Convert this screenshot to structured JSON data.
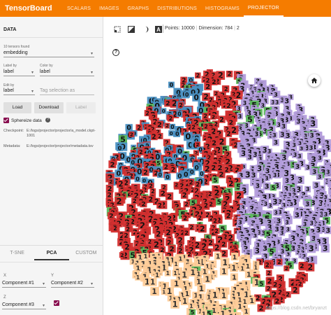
{
  "app": {
    "brand": "TensorBoard",
    "tabs": [
      {
        "label": "SCALARS",
        "active": false
      },
      {
        "label": "IMAGES",
        "active": false
      },
      {
        "label": "GRAPHS",
        "active": false
      },
      {
        "label": "DISTRIBUTIONS",
        "active": false
      },
      {
        "label": "HISTOGRAMS",
        "active": false
      },
      {
        "label": "PROJECTOR",
        "active": true
      }
    ],
    "accent": "#f57c00"
  },
  "sidebar": {
    "header": "DATA",
    "tensors_found": "10 tensors found",
    "tensor_select": "embedding",
    "label_by_caption": "Label by",
    "label_by": "label",
    "color_by_caption": "Color by",
    "color_by": "label",
    "edit_by_caption": "Edit by",
    "edit_by": "label",
    "tag_placeholder": "Tag selection as",
    "load_label": "Load",
    "download_label": "Download",
    "label_button": "Label",
    "sphereize_label": "Sphereize data",
    "sphereize_checked": true,
    "checkpoint_key": "Checkpoint:",
    "checkpoint_value": "E:/logs/projector/projector/a_model.ckpt-1001",
    "metadata_key": "Metadata:",
    "metadata_value": "E:/logs/projector/projector/metadata.tsv",
    "projection_tabs": [
      {
        "label": "T-SNE",
        "active": false
      },
      {
        "label": "PCA",
        "active": true
      },
      {
        "label": "CUSTOM",
        "active": false
      }
    ],
    "x_caption": "X",
    "x_component": "Component #1",
    "y_caption": "Y",
    "y_component": "Component #2",
    "z_caption": "Z",
    "z_component": "Component #3",
    "z_enabled": true
  },
  "toolbar": {
    "icons": [
      "select-rectangle-icon",
      "night-mode-icon",
      "brightness-icon",
      "label-mode-icon"
    ],
    "points": "Points: 10000",
    "dimension": "Dimension: 784",
    "selected": "2"
  },
  "viewer": {
    "help_icon": "?",
    "home_icon": "home-icon",
    "watermark": "https://blog.csdn.net/bryanzt"
  },
  "chart_data": {
    "type": "scatter",
    "title": "",
    "categories": [
      "0",
      "1",
      "2",
      "3",
      "4",
      "5",
      "6",
      "7",
      "8",
      "9"
    ],
    "series": [
      {
        "name": "2",
        "color": "#d32f2f"
      },
      {
        "name": "3",
        "color": "#b39ddb"
      },
      {
        "name": "1",
        "color": "#ffcc99"
      },
      {
        "name": "0",
        "color": "#4a90c2"
      },
      {
        "name": "5",
        "color": "#5cb85c"
      }
    ]
  }
}
